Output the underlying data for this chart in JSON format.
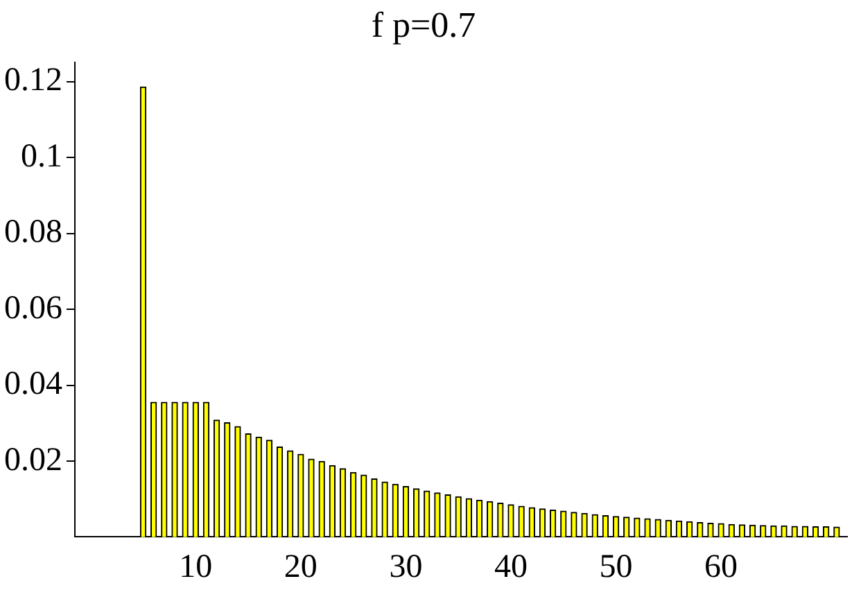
{
  "chart_data": {
    "type": "bar",
    "title": "f p=0.7",
    "x": [
      5,
      6,
      7,
      8,
      9,
      10,
      11,
      12,
      13,
      14,
      15,
      16,
      17,
      18,
      19,
      20,
      21,
      22,
      23,
      24,
      25,
      26,
      27,
      28,
      29,
      30,
      31,
      32,
      33,
      34,
      35,
      36,
      37,
      38,
      39,
      40,
      41,
      42,
      43,
      44,
      45,
      46,
      47,
      48,
      49,
      50,
      51,
      52,
      53,
      54,
      55,
      56,
      57,
      58,
      59,
      60,
      61,
      62,
      63,
      64,
      65,
      66,
      67,
      68,
      69,
      70,
      71
    ],
    "values": [
      0.1186,
      0.0355,
      0.0355,
      0.0355,
      0.0355,
      0.0355,
      0.0355,
      0.0308,
      0.0301,
      0.0291,
      0.0272,
      0.0263,
      0.0255,
      0.0237,
      0.0227,
      0.0218,
      0.0205,
      0.0199,
      0.0188,
      0.018,
      0.017,
      0.0163,
      0.0153,
      0.0145,
      0.0139,
      0.0133,
      0.0127,
      0.0121,
      0.0116,
      0.0111,
      0.0106,
      0.0101,
      0.0097,
      0.0093,
      0.0089,
      0.0085,
      0.0081,
      0.0077,
      0.0074,
      0.0071,
      0.0068,
      0.0065,
      0.0062,
      0.0059,
      0.0056,
      0.0054,
      0.0052,
      0.005,
      0.0048,
      0.0046,
      0.0044,
      0.0042,
      0.004,
      0.0038,
      0.0036,
      0.0035,
      0.0033,
      0.0032,
      0.0031,
      0.003,
      0.0029,
      0.0029,
      0.0028,
      0.0028,
      0.0027,
      0.0027,
      0.0026
    ],
    "color": "#ffff00",
    "xlim": [
      -1.5,
      72
    ],
    "xticks": [
      10,
      20,
      30,
      40,
      50,
      60
    ],
    "ylim": [
      0,
      0.125
    ],
    "yticks": [
      0.02,
      0.04,
      0.06,
      0.08,
      0.1,
      0.12
    ],
    "grid": false,
    "legend": false
  }
}
